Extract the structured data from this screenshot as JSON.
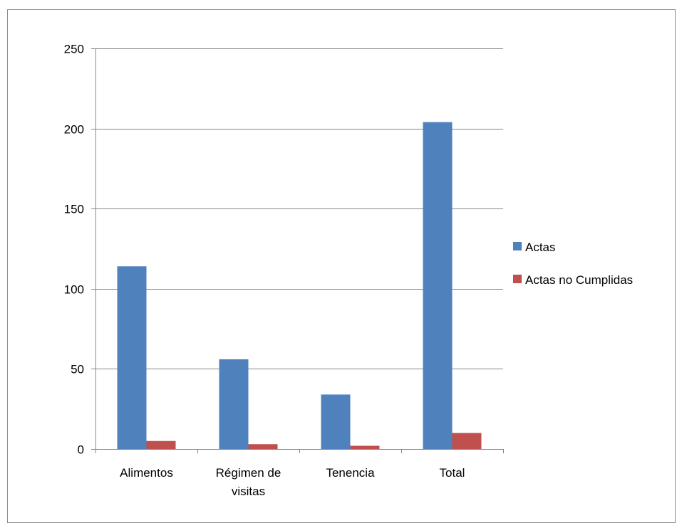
{
  "chart_data": {
    "type": "bar",
    "categories": [
      [
        "Alimentos"
      ],
      [
        "Régimen de",
        "visitas"
      ],
      [
        "Tenencia"
      ],
      [
        "Total"
      ]
    ],
    "series": [
      {
        "name": "Actas",
        "values": [
          114,
          56,
          34,
          204
        ],
        "color": "#4f81bd"
      },
      {
        "name": "Actas no Cumplidas",
        "values": [
          5,
          3,
          2,
          10
        ],
        "color": "#c0504d"
      }
    ],
    "ylim": [
      0,
      250
    ],
    "yticks": [
      0,
      50,
      100,
      150,
      200,
      250
    ],
    "grid": true,
    "legend_position": "right",
    "title": "",
    "xlabel": "",
    "ylabel": ""
  }
}
